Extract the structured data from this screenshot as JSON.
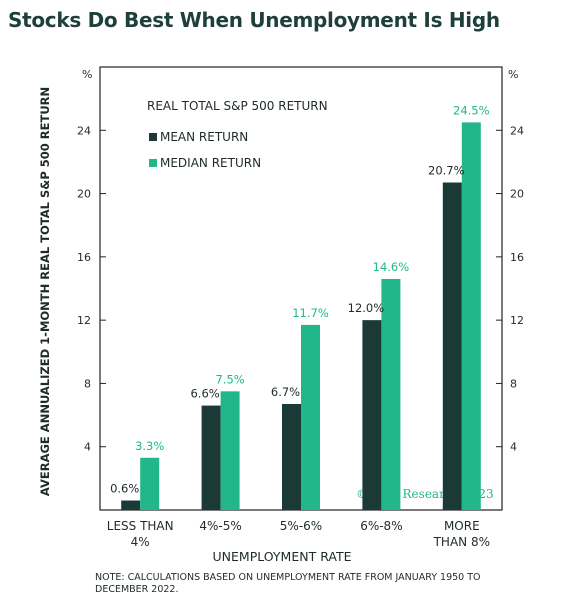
{
  "title": "Stocks Do Best When Unemployment Is High",
  "note": "NOTE: CALCULATIONS BASED ON UNEMPLOYMENT RATE FROM JANUARY 1950 TO DECEMBER 2022.",
  "colors": {
    "mean": "#1b3a37",
    "median": "#21b78a",
    "axis": "#222222",
    "text": "#1f2a2a"
  },
  "chart_data": {
    "type": "bar",
    "title": "REAL TOTAL S&P 500 RETURN",
    "ylabel": "AVERAGE ANNUALIZED 1-MONTH REAL TOTAL S&P 500 RETURN",
    "xlabel": "UNEMPLOYMENT RATE",
    "y_unit": "%",
    "ylim": [
      0,
      28
    ],
    "yticks": [
      4,
      8,
      12,
      16,
      20,
      24
    ],
    "grid": false,
    "legend_position": "top-left",
    "categories": [
      [
        "LESS THAN",
        "4%"
      ],
      [
        "4%-5%"
      ],
      [
        "5%-6%"
      ],
      [
        "6%-8%"
      ],
      [
        "MORE",
        "THAN 8%"
      ]
    ],
    "series": [
      {
        "name": "MEAN RETURN",
        "values": [
          0.6,
          6.6,
          6.7,
          12.0,
          20.7
        ],
        "labels": [
          "0.6%",
          "6.6%",
          "6.7%",
          "12.0%",
          "20.7%"
        ]
      },
      {
        "name": "MEDIAN RETURN",
        "values": [
          3.3,
          7.5,
          11.7,
          14.6,
          24.5
        ],
        "labels": [
          "3.3%",
          "7.5%",
          "11.7%",
          "14.6%",
          "24.5%"
        ]
      }
    ],
    "watermark": "© BCA Research 2023"
  }
}
